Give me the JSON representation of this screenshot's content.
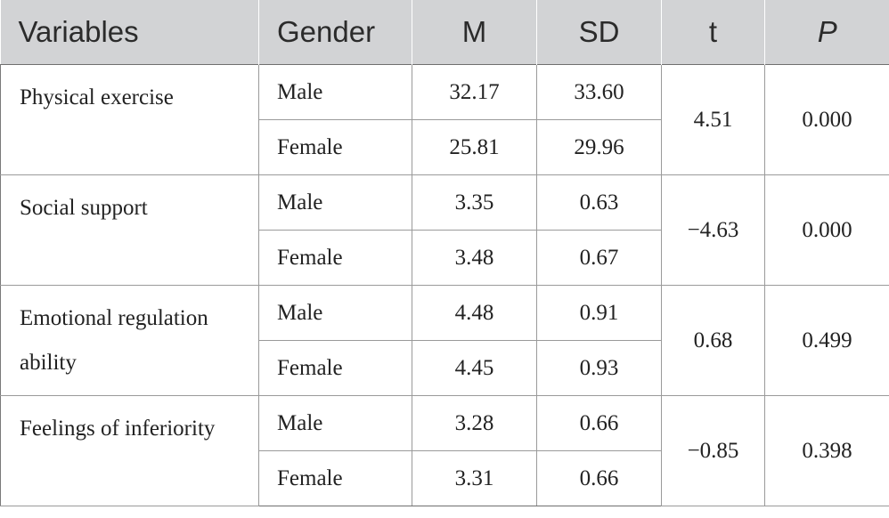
{
  "table": {
    "headers": [
      "Variables",
      "Gender",
      "M",
      "SD",
      "t",
      "P"
    ],
    "groups": [
      {
        "variable": "Physical exercise",
        "rows": [
          {
            "gender": "Male",
            "m": "32.17",
            "sd": "33.60"
          },
          {
            "gender": "Female",
            "m": "25.81",
            "sd": "29.96"
          }
        ],
        "t": "4.51",
        "p": "0.000"
      },
      {
        "variable": "Social support",
        "rows": [
          {
            "gender": "Male",
            "m": "3.35",
            "sd": "0.63"
          },
          {
            "gender": "Female",
            "m": "3.48",
            "sd": "0.67"
          }
        ],
        "t": "−4.63",
        "p": "0.000"
      },
      {
        "variable": "Emotional regulation ability",
        "rows": [
          {
            "gender": "Male",
            "m": "4.48",
            "sd": "0.91"
          },
          {
            "gender": "Female",
            "m": "4.45",
            "sd": "0.93"
          }
        ],
        "t": "0.68",
        "p": "0.499"
      },
      {
        "variable": "Feelings of inferiority",
        "rows": [
          {
            "gender": "Male",
            "m": "3.28",
            "sd": "0.66"
          },
          {
            "gender": "Female",
            "m": "3.31",
            "sd": "0.66"
          }
        ],
        "t": "−0.85",
        "p": "0.398"
      }
    ]
  }
}
